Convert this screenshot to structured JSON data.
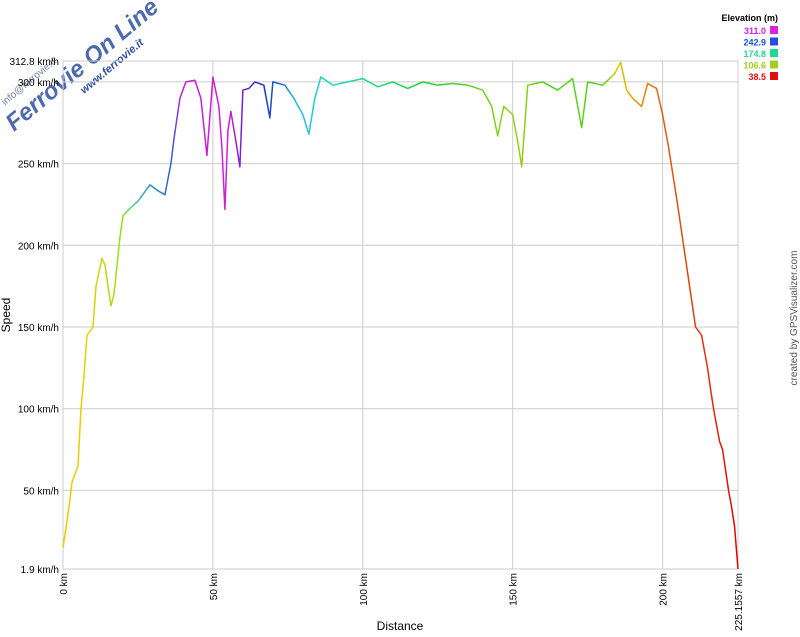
{
  "chart_data": {
    "type": "line",
    "x_label": "Distance",
    "y_label": "Speed",
    "credit": "created by GPSVisualizer.com",
    "watermark": {
      "title": "Ferrovie On Line",
      "site": "www.ferrovie.it",
      "email": "info@ferrovie.it"
    },
    "xlim": [
      0,
      225.1557
    ],
    "ylim": [
      1.9,
      312.8
    ],
    "xticks": [
      {
        "value": 0,
        "label": "0 km"
      },
      {
        "value": 50,
        "label": "50 km"
      },
      {
        "value": 100,
        "label": "100 km"
      },
      {
        "value": 150,
        "label": "150 km"
      },
      {
        "value": 200,
        "label": "200 km"
      },
      {
        "value": 225.1557,
        "label": "225.1557 km"
      }
    ],
    "yticks": [
      {
        "value": 1.9,
        "label": "1.9 km/h"
      },
      {
        "value": 50,
        "label": "50 km/h"
      },
      {
        "value": 100,
        "label": "100 km/h"
      },
      {
        "value": 150,
        "label": "150 km/h"
      },
      {
        "value": 200,
        "label": "200 km/h"
      },
      {
        "value": 250,
        "label": "250 km/h"
      },
      {
        "value": 300,
        "label": "300 km/h"
      },
      {
        "value": 312.8,
        "label": "312.8 km/h"
      }
    ],
    "grid": true,
    "x": [
      0,
      1,
      2,
      3,
      5,
      6,
      7,
      8,
      10,
      11,
      13,
      14,
      15,
      16,
      17,
      19,
      20,
      22,
      25,
      27,
      29,
      32,
      34,
      36,
      37,
      39,
      41,
      44,
      46,
      48,
      50,
      52,
      53,
      54,
      55,
      56,
      58,
      59,
      60,
      62,
      64,
      67,
      69,
      70,
      74,
      77,
      80,
      82,
      84,
      86,
      90,
      95,
      100,
      105,
      110,
      115,
      120,
      125,
      130,
      135,
      140,
      143,
      145,
      147,
      150,
      152,
      153,
      155,
      160,
      165,
      170,
      173,
      175,
      180,
      184,
      186,
      188,
      190,
      193,
      195,
      198,
      200,
      202,
      205,
      207,
      209,
      211,
      213,
      215,
      216,
      217,
      219,
      220,
      222,
      223,
      224,
      225.1557
    ],
    "series": [
      {
        "values": [
          15,
          27,
          40,
          55,
          65,
          100,
          120,
          145,
          150,
          175,
          192,
          188,
          175,
          163,
          170,
          205,
          218,
          222,
          227,
          232,
          237,
          233,
          231,
          250,
          265,
          290,
          300,
          301,
          290,
          255,
          303,
          285,
          260,
          222,
          270,
          282,
          260,
          248,
          295,
          296,
          300,
          298,
          278,
          300,
          298,
          290,
          280,
          268,
          290,
          303,
          298,
          300,
          302,
          297,
          300,
          296,
          300,
          298,
          299,
          298,
          295,
          285,
          267,
          285,
          280,
          260,
          248,
          298,
          300,
          295,
          302,
          272,
          300,
          298,
          305,
          312,
          295,
          290,
          285,
          299,
          296,
          280,
          260,
          225,
          200,
          175,
          150,
          145,
          125,
          112,
          100,
          80,
          75,
          50,
          40,
          28,
          1.9
        ],
        "gradient_stops": [
          {
            "x": 0,
            "color": "#f0c800"
          },
          {
            "x": 8,
            "color": "#e8d000"
          },
          {
            "x": 15,
            "color": "#b8d818"
          },
          {
            "x": 20,
            "color": "#90e020"
          },
          {
            "x": 24,
            "color": "#40c8a0"
          },
          {
            "x": 30,
            "color": "#2090c8"
          },
          {
            "x": 36,
            "color": "#3060d0"
          },
          {
            "x": 40,
            "color": "#c020d0"
          },
          {
            "x": 55,
            "color": "#d020d0"
          },
          {
            "x": 60,
            "color": "#7020d0"
          },
          {
            "x": 66,
            "color": "#2030c0"
          },
          {
            "x": 72,
            "color": "#1060d0"
          },
          {
            "x": 78,
            "color": "#20c0e0"
          },
          {
            "x": 90,
            "color": "#20d8c0"
          },
          {
            "x": 105,
            "color": "#20d880"
          },
          {
            "x": 120,
            "color": "#20d030"
          },
          {
            "x": 140,
            "color": "#70d020"
          },
          {
            "x": 152,
            "color": "#a0d010"
          },
          {
            "x": 160,
            "color": "#50d020"
          },
          {
            "x": 180,
            "color": "#60d020"
          },
          {
            "x": 185,
            "color": "#d0d000"
          },
          {
            "x": 190,
            "color": "#e0a000"
          },
          {
            "x": 200,
            "color": "#e06010"
          },
          {
            "x": 215,
            "color": "#e03010"
          },
          {
            "x": 225.1557,
            "color": "#e00000"
          }
        ]
      }
    ],
    "legend": {
      "title": "Elevation (m)",
      "position": "top-right",
      "entries": [
        {
          "label": "311.0",
          "color": "#e020e0"
        },
        {
          "label": "242.9",
          "color": "#2050e0"
        },
        {
          "label": "174.8",
          "color": "#20d890"
        },
        {
          "label": "106.6",
          "color": "#a0d020"
        },
        {
          "label": "38.5",
          "color": "#e01010"
        }
      ]
    }
  }
}
